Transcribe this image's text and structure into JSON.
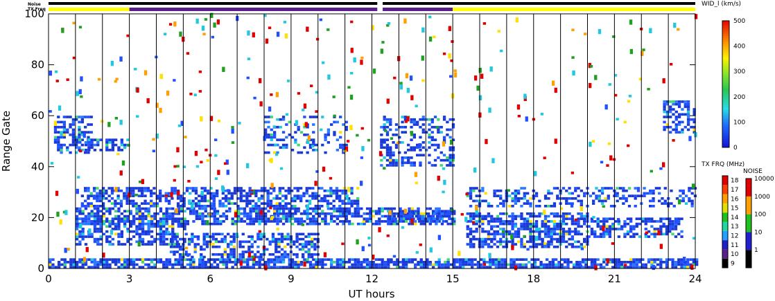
{
  "chart_data": {
    "type": "heatmap",
    "xlabel": "UT hours",
    "ylabel": "Range Gate",
    "xlim": [
      0,
      24
    ],
    "ylim": [
      0,
      100
    ],
    "x_ticks": [
      "0",
      "3",
      "6",
      "9",
      "12",
      "15",
      "18",
      "21",
      "24"
    ],
    "y_ticks": [
      "0",
      "20",
      "40",
      "60",
      "80",
      "100"
    ],
    "grid": "vertical lines each hour",
    "status_bars": {
      "noise_label": "Noise",
      "txfreq_label": "TX Freq",
      "noise_segments": [
        {
          "start": 0,
          "end": 12.2,
          "color": "#000000"
        },
        {
          "start": 12.4,
          "end": 24,
          "color": "#000000"
        }
      ],
      "txfreq_segments": [
        {
          "start": 0,
          "end": 3.0,
          "color": "#ffff00"
        },
        {
          "start": 3.0,
          "end": 12.2,
          "color": "#5a1e8c"
        },
        {
          "start": 12.4,
          "end": 15.0,
          "color": "#5a1e8c"
        },
        {
          "start": 15.0,
          "end": 24,
          "color": "#ffff00"
        }
      ]
    },
    "colorbar_width": {
      "title": "WID_l (km/s)",
      "range": [
        0,
        500
      ],
      "ticks": [
        "0",
        "100",
        "200",
        "300",
        "400",
        "500"
      ]
    },
    "colorbar_txfreq": {
      "title": "TX FRQ (MHz)",
      "ticks": [
        "9",
        "10",
        "11",
        "12",
        "13",
        "14",
        "15",
        "16",
        "17",
        "18"
      ],
      "colors": [
        "#000000",
        "#5a1e8c",
        "#2020c8",
        "#20a0ff",
        "#20d8a0",
        "#20c020",
        "#e0e000",
        "#ffa000",
        "#ff4000",
        "#e00000"
      ]
    },
    "colorbar_noise": {
      "title": "NOISE",
      "ticks": [
        "1",
        "10",
        "100",
        "1000",
        "10000"
      ],
      "colors": [
        "#000000",
        "#2020d0",
        "#20c020",
        "#ffa000",
        "#e00000"
      ]
    },
    "scatter_bands": [
      {
        "x0": 0,
        "x1": 24,
        "y0": 0,
        "y1": 4,
        "density": 0.75
      },
      {
        "x0": 1.0,
        "x1": 5.0,
        "y0": 9,
        "y1": 20,
        "density": 0.55
      },
      {
        "x0": 1.0,
        "x1": 15.0,
        "y0": 17,
        "y1": 24,
        "density": 0.65
      },
      {
        "x0": 1.2,
        "x1": 11.5,
        "y0": 24,
        "y1": 32,
        "density": 0.55
      },
      {
        "x0": 4.5,
        "x1": 10.0,
        "y0": 4,
        "y1": 14,
        "density": 0.5
      },
      {
        "x0": 0.2,
        "x1": 1.6,
        "y0": 45,
        "y1": 60,
        "density": 0.5
      },
      {
        "x0": 1.0,
        "x1": 3.0,
        "y0": 46,
        "y1": 51,
        "density": 0.6
      },
      {
        "x0": 8.0,
        "x1": 11.0,
        "y0": 45,
        "y1": 60,
        "density": 0.25
      },
      {
        "x0": 12.3,
        "x1": 15.0,
        "y0": 40,
        "y1": 60,
        "density": 0.35
      },
      {
        "x0": 12.6,
        "x1": 15.0,
        "y0": 18,
        "y1": 22,
        "density": 0.6
      },
      {
        "x0": 15.5,
        "x1": 20.0,
        "y0": 8,
        "y1": 22,
        "density": 0.65
      },
      {
        "x0": 15.5,
        "x1": 24.0,
        "y0": 24,
        "y1": 32,
        "density": 0.35
      },
      {
        "x0": 20.0,
        "x1": 23.5,
        "y0": 12,
        "y1": 20,
        "density": 0.6
      },
      {
        "x0": 22.8,
        "x1": 24.0,
        "y0": 53,
        "y1": 66,
        "density": 0.5
      }
    ],
    "sparse_noise": {
      "x0": 0,
      "x1": 24,
      "y0": 0,
      "y1": 100,
      "count": 420
    }
  }
}
